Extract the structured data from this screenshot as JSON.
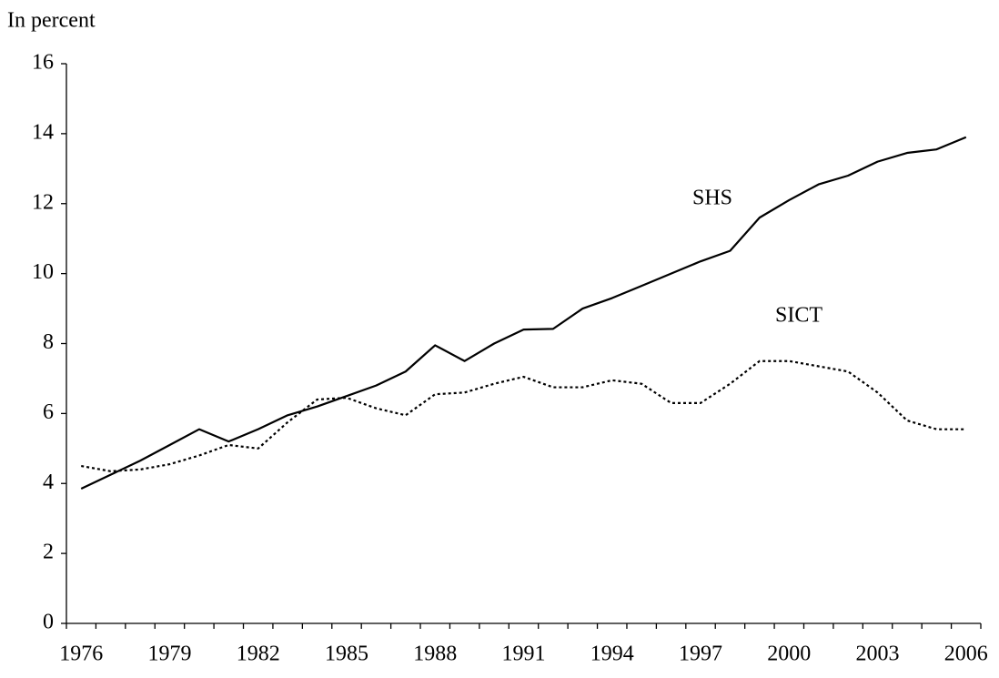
{
  "chart_data": {
    "type": "line",
    "y_label": "In percent",
    "categories": [
      "1976",
      null,
      null,
      "1979",
      null,
      null,
      "1982",
      null,
      null,
      "1985",
      null,
      null,
      "1988",
      null,
      null,
      "1991",
      null,
      null,
      "1994",
      null,
      null,
      "1997",
      null,
      null,
      "2000",
      null,
      null,
      "2003",
      null,
      null,
      "2006"
    ],
    "series": [
      {
        "name": "SHS",
        "color": "#000000",
        "style": "solid",
        "values": [
          3.85,
          4.25,
          4.65,
          5.1,
          5.55,
          5.2,
          5.55,
          5.95,
          6.2,
          6.5,
          6.8,
          7.2,
          7.95,
          7.5,
          8.0,
          8.4,
          8.42,
          9.0,
          9.3,
          9.65,
          10.0,
          10.35,
          10.65,
          11.6,
          12.1,
          12.55,
          12.8,
          13.2,
          13.45,
          13.55,
          13.9
        ]
      },
      {
        "name": "SICT",
        "color": "#000000",
        "style": "dotted",
        "values": [
          4.5,
          4.35,
          4.4,
          4.55,
          4.8,
          5.1,
          5.0,
          5.75,
          6.4,
          6.45,
          6.15,
          5.95,
          6.55,
          6.6,
          6.85,
          7.05,
          6.75,
          6.75,
          6.95,
          6.85,
          6.3,
          6.3,
          6.85,
          7.5,
          7.5,
          7.35,
          7.2,
          6.6,
          5.8,
          5.55,
          5.55
        ]
      }
    ],
    "ylim": [
      0,
      16
    ],
    "yticks": [
      0,
      2,
      4,
      6,
      8,
      10,
      12,
      14,
      16
    ],
    "grid": false
  }
}
